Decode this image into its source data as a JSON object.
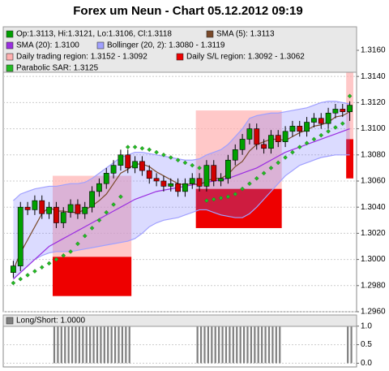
{
  "chart_data": {
    "type": "candlestick",
    "title": "Forex um Neun - Chart 05.12.2012 09:19",
    "ylim": [
      1.296,
      1.3178
    ],
    "yticks": [
      {
        "value": 1.296,
        "label": "1.2960"
      },
      {
        "value": 1.298,
        "label": "1.2980"
      },
      {
        "value": 1.3,
        "label": "1.3000"
      },
      {
        "value": 1.302,
        "label": "1.3020"
      },
      {
        "value": 1.304,
        "label": "1.3040"
      },
      {
        "value": 1.306,
        "label": "1.3060"
      },
      {
        "value": 1.308,
        "label": "1.3080"
      },
      {
        "value": 1.31,
        "label": "1.3100"
      },
      {
        "value": 1.312,
        "label": "1.3120"
      },
      {
        "value": 1.314,
        "label": "1.3140"
      },
      {
        "value": 1.316,
        "label": "1.3160"
      }
    ],
    "grid": true,
    "candles": {
      "name": "Op:1.3113, Hi:1.3121, Lo:1.3106, Cl:1.3118",
      "color": "#00a000",
      "down_color": "#d00000",
      "open": [
        1.299,
        1.2995,
        1.304,
        1.3038,
        1.3045,
        1.3035,
        1.304,
        1.3028,
        1.3036,
        1.3042,
        1.3035,
        1.304,
        1.3052,
        1.3058,
        1.3066,
        1.3072,
        1.308,
        1.307,
        1.3075,
        1.3068,
        1.3062,
        1.306,
        1.3056,
        1.3058,
        1.3052,
        1.3058,
        1.3062,
        1.3056,
        1.3072,
        1.306,
        1.3062,
        1.3076,
        1.3084,
        1.3092,
        1.31,
        1.3088,
        1.3085,
        1.3095,
        1.309,
        1.3098,
        1.3102,
        1.3098,
        1.3105,
        1.3108,
        1.3104,
        1.3112,
        1.3115,
        1.3113
      ],
      "high": [
        1.2999,
        1.3044,
        1.3044,
        1.3049,
        1.3049,
        1.3044,
        1.3044,
        1.304,
        1.3046,
        1.3046,
        1.3044,
        1.3056,
        1.3062,
        1.307,
        1.3076,
        1.3084,
        1.3084,
        1.3079,
        1.3079,
        1.3072,
        1.3066,
        1.3064,
        1.3062,
        1.3062,
        1.3062,
        1.3066,
        1.3066,
        1.3076,
        1.3076,
        1.3066,
        1.308,
        1.3088,
        1.3096,
        1.3104,
        1.3104,
        1.3092,
        1.3099,
        1.3099,
        1.3102,
        1.3106,
        1.3106,
        1.3109,
        1.3112,
        1.3112,
        1.3116,
        1.3119,
        1.3119,
        1.3121
      ],
      "low": [
        1.2986,
        1.2991,
        1.3034,
        1.3034,
        1.3031,
        1.3031,
        1.3024,
        1.3024,
        1.3032,
        1.3031,
        1.3031,
        1.3036,
        1.3048,
        1.3054,
        1.3062,
        1.3068,
        1.3066,
        1.3066,
        1.3064,
        1.3058,
        1.3056,
        1.3052,
        1.3052,
        1.3048,
        1.3048,
        1.3054,
        1.3052,
        1.3052,
        1.3056,
        1.3056,
        1.3058,
        1.3072,
        1.308,
        1.3088,
        1.3084,
        1.3081,
        1.3081,
        1.3086,
        1.3086,
        1.3094,
        1.3094,
        1.3094,
        1.3101,
        1.31,
        1.31,
        1.3108,
        1.3109,
        1.3106
      ],
      "close": [
        1.2995,
        1.304,
        1.3038,
        1.3045,
        1.3035,
        1.304,
        1.3028,
        1.3036,
        1.3042,
        1.3035,
        1.304,
        1.3052,
        1.3058,
        1.3066,
        1.3072,
        1.308,
        1.307,
        1.3075,
        1.3068,
        1.3062,
        1.306,
        1.3056,
        1.3058,
        1.3052,
        1.3058,
        1.3062,
        1.3056,
        1.3072,
        1.306,
        1.3062,
        1.3076,
        1.3084,
        1.3092,
        1.31,
        1.3088,
        1.3085,
        1.3095,
        1.309,
        1.3098,
        1.3102,
        1.3098,
        1.3105,
        1.3108,
        1.3104,
        1.3112,
        1.3115,
        1.3113,
        1.3118
      ]
    },
    "sma5": {
      "name": "SMA (5): 1.3113",
      "color": "#7a4a2a",
      "values": [
        1.2992,
        1.3005,
        1.3015,
        1.3025,
        1.3035,
        1.304,
        1.3037,
        1.3037,
        1.3036,
        1.3036,
        1.3038,
        1.3041,
        1.3045,
        1.305,
        1.3058,
        1.3066,
        1.3069,
        1.3073,
        1.3073,
        1.3071,
        1.3067,
        1.3064,
        1.3061,
        1.3058,
        1.3057,
        1.3058,
        1.3057,
        1.306,
        1.3062,
        1.3062,
        1.3065,
        1.3071,
        1.3075,
        1.3083,
        1.3088,
        1.309,
        1.3092,
        1.3092,
        1.3091,
        1.3094,
        1.3097,
        1.3099,
        1.3102,
        1.3103,
        1.3105,
        1.3109,
        1.311,
        1.3113
      ]
    },
    "sma20": {
      "name": "SMA (20): 1.3100",
      "color": "#9a2ee0",
      "values": [
        1.2985,
        1.299,
        1.2995,
        1.3,
        1.3005,
        1.301,
        1.3013,
        1.3016,
        1.3019,
        1.3022,
        1.3025,
        1.3028,
        1.3031,
        1.3034,
        1.3037,
        1.304,
        1.3043,
        1.3046,
        1.3048,
        1.305,
        1.3052,
        1.3053,
        1.3054,
        1.3055,
        1.3056,
        1.3057,
        1.3058,
        1.3059,
        1.306,
        1.3061,
        1.3062,
        1.3064,
        1.3066,
        1.3068,
        1.307,
        1.3073,
        1.3076,
        1.3079,
        1.3082,
        1.3084,
        1.3086,
        1.3088,
        1.309,
        1.3092,
        1.3094,
        1.3096,
        1.3098,
        1.31
      ]
    },
    "bollinger": {
      "name": "Bollinger (20, 2): 1.3080 - 1.3119",
      "color": "#a0a0ff",
      "upper": [
        1.3045,
        1.305,
        1.3052,
        1.3054,
        1.3055,
        1.3056,
        1.3056,
        1.3057,
        1.3058,
        1.3058,
        1.3059,
        1.3062,
        1.3066,
        1.307,
        1.3074,
        1.3078,
        1.308,
        1.3082,
        1.3082,
        1.3081,
        1.308,
        1.3079,
        1.3078,
        1.3077,
        1.3076,
        1.3076,
        1.3077,
        1.308,
        1.3082,
        1.3084,
        1.3088,
        1.3094,
        1.31,
        1.3108,
        1.311,
        1.3111,
        1.3112,
        1.3112,
        1.3113,
        1.3114,
        1.3115,
        1.3116,
        1.3118,
        1.312,
        1.3121,
        1.3121,
        1.312,
        1.3119
      ],
      "lower": [
        1.2985,
        1.299,
        1.2995,
        1.3,
        1.3003,
        1.3005,
        1.3006,
        1.3006,
        1.3006,
        1.3007,
        1.3008,
        1.3009,
        1.301,
        1.3011,
        1.3012,
        1.3013,
        1.3014,
        1.3016,
        1.302,
        1.3025,
        1.3028,
        1.303,
        1.3031,
        1.3032,
        1.3034,
        1.3036,
        1.3038,
        1.3038,
        1.3036,
        1.3034,
        1.3033,
        1.3032,
        1.3032,
        1.3035,
        1.304,
        1.3046,
        1.3052,
        1.3058,
        1.3064,
        1.3068,
        1.3072,
        1.3074,
        1.3076,
        1.3078,
        1.3079,
        1.308,
        1.308,
        1.308
      ]
    },
    "trading_region": {
      "name": "Daily trading region: 1.3152 - 1.3092",
      "color": "#ffb0b0",
      "regions": [
        {
          "start": 6,
          "end": 16,
          "high": 1.3064,
          "low": 1.3002
        },
        {
          "start": 26,
          "end": 37,
          "high": 1.3114,
          "low": 1.3054
        },
        {
          "start": 47,
          "end": 47,
          "high": 1.3152,
          "low": 1.3092
        }
      ]
    },
    "sl_region": {
      "name": "Daily S/L region: 1.3092 - 1.3062",
      "color": "#ee0000",
      "regions": [
        {
          "start": 6,
          "end": 16,
          "high": 1.3002,
          "low": 1.2972
        },
        {
          "start": 26,
          "end": 37,
          "high": 1.3054,
          "low": 1.3024
        },
        {
          "start": 47,
          "end": 47,
          "high": 1.3092,
          "low": 1.3062
        }
      ]
    },
    "sar": {
      "name": "Parabolic SAR: 1.3125",
      "color": "#22bb22",
      "values": [
        1.2982,
        1.2985,
        1.2988,
        1.2991,
        1.2994,
        1.2997,
        1.3,
        1.3003,
        1.3006,
        1.3012,
        1.3018,
        1.3024,
        1.303,
        1.3036,
        1.3042,
        1.3048,
        1.3086,
        1.3086,
        1.3085,
        1.3084,
        1.3082,
        1.308,
        1.3078,
        1.3076,
        1.3074,
        1.3072,
        1.307,
        1.3045,
        1.3046,
        1.3047,
        1.3048,
        1.305,
        1.3054,
        1.3058,
        1.3062,
        1.3066,
        1.307,
        1.3074,
        1.3078,
        1.3082,
        1.3086,
        1.3089,
        1.3092,
        1.3095,
        1.3098,
        1.3101,
        1.3104,
        1.3125
      ]
    },
    "long_short": {
      "name": "Long/Short: 1.0000",
      "color": "#808080",
      "ylim": [
        -0.1,
        1.3
      ],
      "yticks": [
        {
          "value": 0,
          "label": "0.0"
        },
        {
          "value": 0.5,
          "label": "0.5"
        },
        {
          "value": 1,
          "label": "1.0"
        }
      ],
      "values": [
        0,
        0,
        0,
        0,
        0,
        0,
        1,
        1,
        1,
        1,
        1,
        1,
        1,
        1,
        1,
        1,
        1,
        0,
        0,
        0,
        0,
        0,
        0,
        0,
        0,
        0,
        1,
        1,
        1,
        1,
        1,
        1,
        1,
        1,
        1,
        1,
        1,
        1,
        0,
        0,
        0,
        0,
        0,
        0,
        0,
        0,
        0,
        1
      ]
    }
  }
}
